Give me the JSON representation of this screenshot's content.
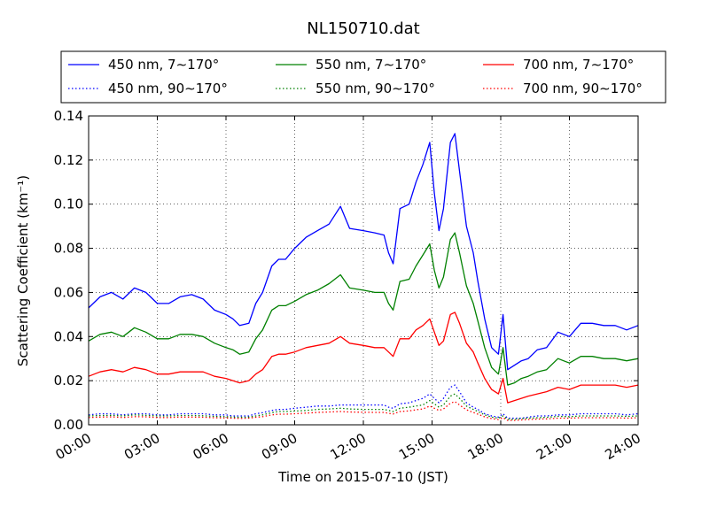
{
  "chart_data": {
    "type": "line",
    "title": "NL150710.dat",
    "xlabel": "Time on 2015-07-10 (JST)",
    "ylabel": "Scattering Coefficient (km⁻¹)",
    "xlim": [
      0,
      24
    ],
    "ylim": [
      0,
      0.14
    ],
    "xticks": [
      0,
      3,
      6,
      9,
      12,
      15,
      18,
      21,
      24
    ],
    "xtick_labels": [
      "00:00",
      "03:00",
      "06:00",
      "09:00",
      "12:00",
      "15:00",
      "18:00",
      "21:00",
      "24:00"
    ],
    "yticks": [
      0,
      0.02,
      0.04,
      0.06,
      0.08,
      0.1,
      0.12,
      0.14
    ],
    "ytick_labels": [
      "0.00",
      "0.02",
      "0.04",
      "0.06",
      "0.08",
      "0.10",
      "0.12",
      "0.14"
    ],
    "grid": true,
    "legend_position": "top",
    "x": [
      0,
      0.5,
      1,
      1.5,
      2,
      2.5,
      3,
      3.5,
      4,
      4.5,
      5,
      5.5,
      6,
      6.3,
      6.6,
      7,
      7.3,
      7.6,
      8,
      8.3,
      8.6,
      9,
      9.5,
      10,
      10.5,
      11,
      11.4,
      12,
      12.5,
      12.9,
      13.1,
      13.3,
      13.6,
      14,
      14.3,
      14.6,
      14.9,
      15.1,
      15.3,
      15.5,
      15.8,
      16,
      16.2,
      16.5,
      16.8,
      17,
      17.3,
      17.6,
      17.9,
      18.1,
      18.3,
      18.6,
      18.9,
      19.2,
      19.6,
      20,
      20.5,
      21,
      21.5,
      22,
      22.5,
      23,
      23.5,
      24
    ],
    "series": [
      {
        "name": "450 nm, 7∼170°",
        "style": "solid",
        "color": "#0000ff",
        "values": [
          0.053,
          0.058,
          0.06,
          0.057,
          0.062,
          0.06,
          0.055,
          0.055,
          0.058,
          0.059,
          0.057,
          0.052,
          0.05,
          0.048,
          0.045,
          0.046,
          0.055,
          0.06,
          0.072,
          0.075,
          0.075,
          0.08,
          0.085,
          0.088,
          0.091,
          0.099,
          0.089,
          0.088,
          0.087,
          0.086,
          0.078,
          0.073,
          0.098,
          0.1,
          0.11,
          0.118,
          0.128,
          0.105,
          0.088,
          0.098,
          0.128,
          0.132,
          0.115,
          0.09,
          0.078,
          0.065,
          0.048,
          0.035,
          0.032,
          0.05,
          0.025,
          0.027,
          0.029,
          0.03,
          0.034,
          0.035,
          0.042,
          0.04,
          0.046,
          0.046,
          0.045,
          0.045,
          0.043,
          0.045
        ]
      },
      {
        "name": "550 nm, 7∼170°",
        "style": "solid",
        "color": "#008000",
        "values": [
          0.038,
          0.041,
          0.042,
          0.04,
          0.044,
          0.042,
          0.039,
          0.039,
          0.041,
          0.041,
          0.04,
          0.037,
          0.035,
          0.034,
          0.032,
          0.033,
          0.039,
          0.043,
          0.052,
          0.054,
          0.054,
          0.056,
          0.059,
          0.061,
          0.064,
          0.068,
          0.062,
          0.061,
          0.06,
          0.06,
          0.055,
          0.052,
          0.065,
          0.066,
          0.072,
          0.077,
          0.082,
          0.07,
          0.062,
          0.067,
          0.084,
          0.087,
          0.078,
          0.063,
          0.055,
          0.047,
          0.035,
          0.026,
          0.023,
          0.035,
          0.018,
          0.019,
          0.021,
          0.022,
          0.024,
          0.025,
          0.03,
          0.028,
          0.031,
          0.031,
          0.03,
          0.03,
          0.029,
          0.03
        ]
      },
      {
        "name": "700 nm, 7∼170°",
        "style": "solid",
        "color": "#ff0000",
        "values": [
          0.022,
          0.024,
          0.025,
          0.024,
          0.026,
          0.025,
          0.023,
          0.023,
          0.024,
          0.024,
          0.024,
          0.022,
          0.021,
          0.02,
          0.019,
          0.02,
          0.023,
          0.025,
          0.031,
          0.032,
          0.032,
          0.033,
          0.035,
          0.036,
          0.037,
          0.04,
          0.037,
          0.036,
          0.035,
          0.035,
          0.033,
          0.031,
          0.039,
          0.039,
          0.043,
          0.045,
          0.048,
          0.042,
          0.036,
          0.038,
          0.05,
          0.051,
          0.046,
          0.037,
          0.033,
          0.028,
          0.021,
          0.016,
          0.014,
          0.021,
          0.01,
          0.011,
          0.012,
          0.013,
          0.014,
          0.015,
          0.017,
          0.016,
          0.018,
          0.018,
          0.018,
          0.018,
          0.017,
          0.018
        ]
      },
      {
        "name": "450 nm, 90∼170°",
        "style": "dotted",
        "color": "#0000ff",
        "values": [
          0.0045,
          0.005,
          0.005,
          0.0045,
          0.005,
          0.005,
          0.0045,
          0.0045,
          0.005,
          0.005,
          0.005,
          0.0045,
          0.0045,
          0.004,
          0.004,
          0.004,
          0.005,
          0.0055,
          0.0065,
          0.007,
          0.007,
          0.0075,
          0.008,
          0.0085,
          0.0085,
          0.009,
          0.009,
          0.009,
          0.009,
          0.009,
          0.008,
          0.0075,
          0.0095,
          0.01,
          0.011,
          0.012,
          0.014,
          0.012,
          0.01,
          0.012,
          0.017,
          0.018,
          0.015,
          0.01,
          0.008,
          0.007,
          0.005,
          0.004,
          0.0035,
          0.005,
          0.003,
          0.003,
          0.003,
          0.0035,
          0.004,
          0.004,
          0.0045,
          0.0045,
          0.005,
          0.005,
          0.005,
          0.005,
          0.0045,
          0.005
        ]
      },
      {
        "name": "550 nm, 90∼170°",
        "style": "dotted",
        "color": "#008000",
        "values": [
          0.004,
          0.0042,
          0.0043,
          0.004,
          0.0045,
          0.0043,
          0.004,
          0.004,
          0.0042,
          0.0042,
          0.0041,
          0.0038,
          0.0037,
          0.0035,
          0.0034,
          0.0035,
          0.004,
          0.0045,
          0.0055,
          0.006,
          0.006,
          0.0062,
          0.0065,
          0.007,
          0.0072,
          0.0075,
          0.0072,
          0.007,
          0.007,
          0.007,
          0.0065,
          0.006,
          0.0075,
          0.008,
          0.0085,
          0.009,
          0.011,
          0.0095,
          0.008,
          0.009,
          0.013,
          0.014,
          0.012,
          0.0085,
          0.007,
          0.006,
          0.0045,
          0.0035,
          0.003,
          0.004,
          0.0025,
          0.0025,
          0.0028,
          0.003,
          0.0032,
          0.0034,
          0.0038,
          0.0037,
          0.004,
          0.004,
          0.004,
          0.004,
          0.0038,
          0.004
        ]
      },
      {
        "name": "700 nm, 90∼170°",
        "style": "dotted",
        "color": "#ff0000",
        "values": [
          0.0033,
          0.0035,
          0.0036,
          0.0033,
          0.0037,
          0.0036,
          0.0033,
          0.0033,
          0.0035,
          0.0035,
          0.0034,
          0.0032,
          0.0031,
          0.003,
          0.0029,
          0.003,
          0.0034,
          0.0037,
          0.0045,
          0.0048,
          0.0048,
          0.005,
          0.0053,
          0.0056,
          0.0058,
          0.006,
          0.0058,
          0.0057,
          0.0056,
          0.0056,
          0.0052,
          0.0049,
          0.006,
          0.0063,
          0.0068,
          0.0072,
          0.0085,
          0.0075,
          0.0065,
          0.0072,
          0.0098,
          0.0105,
          0.009,
          0.0068,
          0.0056,
          0.0048,
          0.0036,
          0.0028,
          0.0024,
          0.0032,
          0.002,
          0.002,
          0.0022,
          0.0024,
          0.0026,
          0.0027,
          0.003,
          0.003,
          0.0032,
          0.0032,
          0.0032,
          0.0032,
          0.003,
          0.0032
        ]
      }
    ]
  }
}
